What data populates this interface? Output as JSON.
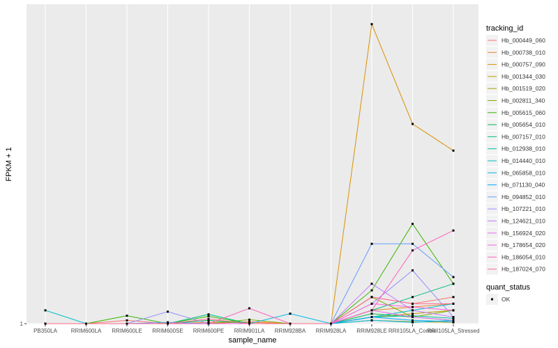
{
  "chart_data": {
    "type": "line",
    "xlabel": "sample_name",
    "ylabel": "FPKM + 1",
    "y_ticks": [
      {
        "value": 1,
        "label": "1"
      }
    ],
    "categories": [
      "PB350LA",
      "RRIM600LA",
      "RRIM600LE",
      "RRIM600SE",
      "RRIM600PE",
      "RRIM901LA",
      "RRIM928BA",
      "RRIM928LA",
      "RRIM928LE",
      "RRII105LA_Control",
      "RRII105LA_Stressed"
    ],
    "ylim": [
      0.9,
      49
    ],
    "grid": true,
    "legend_placement": "right",
    "legend": {
      "colour_title": "tracking_id",
      "shape_title": "quant_status",
      "shape_entries": [
        "OK"
      ]
    },
    "series": [
      {
        "name": "Hb_000449_060",
        "color": "#F8766D",
        "values": [
          1,
          1,
          1.5,
          1,
          1,
          1.3,
          1,
          1,
          5,
          4,
          5
        ]
      },
      {
        "name": "Hb_000738_010",
        "color": "#EA8331",
        "values": [
          1,
          1,
          1,
          1,
          1.2,
          1.2,
          1,
          1,
          3,
          3.5,
          4
        ]
      },
      {
        "name": "Hb_000757_090",
        "color": "#D89000",
        "values": [
          1,
          1,
          1,
          1,
          1,
          1,
          1,
          1,
          46,
          31,
          27
        ]
      },
      {
        "name": "Hb_001344_030",
        "color": "#C09B00",
        "values": [
          1,
          1,
          1,
          1,
          1,
          1,
          1,
          1,
          2,
          2.5,
          3
        ]
      },
      {
        "name": "Hb_001519_020",
        "color": "#A3A500",
        "values": [
          1,
          1,
          1,
          1,
          1,
          1,
          1,
          1,
          1.5,
          1.3,
          1.2
        ]
      },
      {
        "name": "Hb_002811_340",
        "color": "#7CAE00",
        "values": [
          1,
          1,
          1,
          1,
          1,
          1.6,
          1,
          1,
          5,
          2,
          3
        ]
      },
      {
        "name": "Hb_005615_060",
        "color": "#39B600",
        "values": [
          1,
          1,
          2.2,
          1,
          2.1,
          1,
          1,
          1,
          6,
          16,
          7
        ]
      },
      {
        "name": "Hb_005654_010",
        "color": "#00BB4E",
        "values": [
          1,
          1,
          1,
          1,
          1.5,
          1,
          1,
          1,
          2.5,
          2,
          1.5
        ]
      },
      {
        "name": "Hb_007157_010",
        "color": "#00BF7D",
        "values": [
          1,
          1,
          1,
          1,
          2.4,
          1,
          1,
          1,
          3,
          5,
          7
        ]
      },
      {
        "name": "Hb_012938_010",
        "color": "#00C1A3",
        "values": [
          1,
          1,
          1,
          1,
          1,
          1,
          1,
          1,
          2,
          2.2,
          1.8
        ]
      },
      {
        "name": "Hb_014440_010",
        "color": "#00BFC4",
        "values": [
          3,
          1,
          1,
          1,
          1,
          1,
          1,
          1,
          2,
          3,
          4
        ]
      },
      {
        "name": "Hb_065858_010",
        "color": "#00B8E7",
        "values": [
          1,
          1,
          1,
          1,
          1,
          1,
          2.5,
          1,
          1.5,
          1.2,
          1.5
        ]
      },
      {
        "name": "Hb_071130_040",
        "color": "#00A9FF",
        "values": [
          1,
          1,
          1,
          1,
          1,
          1,
          1,
          1,
          2,
          1.5,
          1.3
        ]
      },
      {
        "name": "Hb_094852_010",
        "color": "#619CFF",
        "values": [
          1,
          1,
          1,
          1.2,
          1,
          1,
          1,
          1,
          13,
          13,
          8
        ]
      },
      {
        "name": "Hb_107221_010",
        "color": "#9590FF",
        "values": [
          1,
          1,
          1,
          2.8,
          1,
          1,
          1,
          1,
          4,
          9,
          2
        ]
      },
      {
        "name": "Hb_124621_010",
        "color": "#C77CFF",
        "values": [
          1,
          1,
          1,
          1,
          1,
          1,
          1,
          1,
          7,
          3,
          2
        ]
      },
      {
        "name": "Hb_156924_020",
        "color": "#E76BF3",
        "values": [
          1,
          1,
          1,
          1,
          1,
          1,
          1,
          1,
          3,
          2,
          1.5
        ]
      },
      {
        "name": "Hb_178654_020",
        "color": "#FA62DB",
        "values": [
          1,
          1,
          1,
          1,
          1,
          1,
          1,
          1,
          4,
          3.5,
          3
        ]
      },
      {
        "name": "Hb_186054_010",
        "color": "#FF62BC",
        "values": [
          1,
          1,
          1,
          1,
          1,
          3.3,
          1,
          1,
          3,
          12,
          15
        ]
      },
      {
        "name": "Hb_187024_070",
        "color": "#FF6C91",
        "values": [
          1,
          1,
          1,
          1,
          1.7,
          1,
          1,
          1,
          5,
          4,
          4
        ]
      }
    ]
  }
}
